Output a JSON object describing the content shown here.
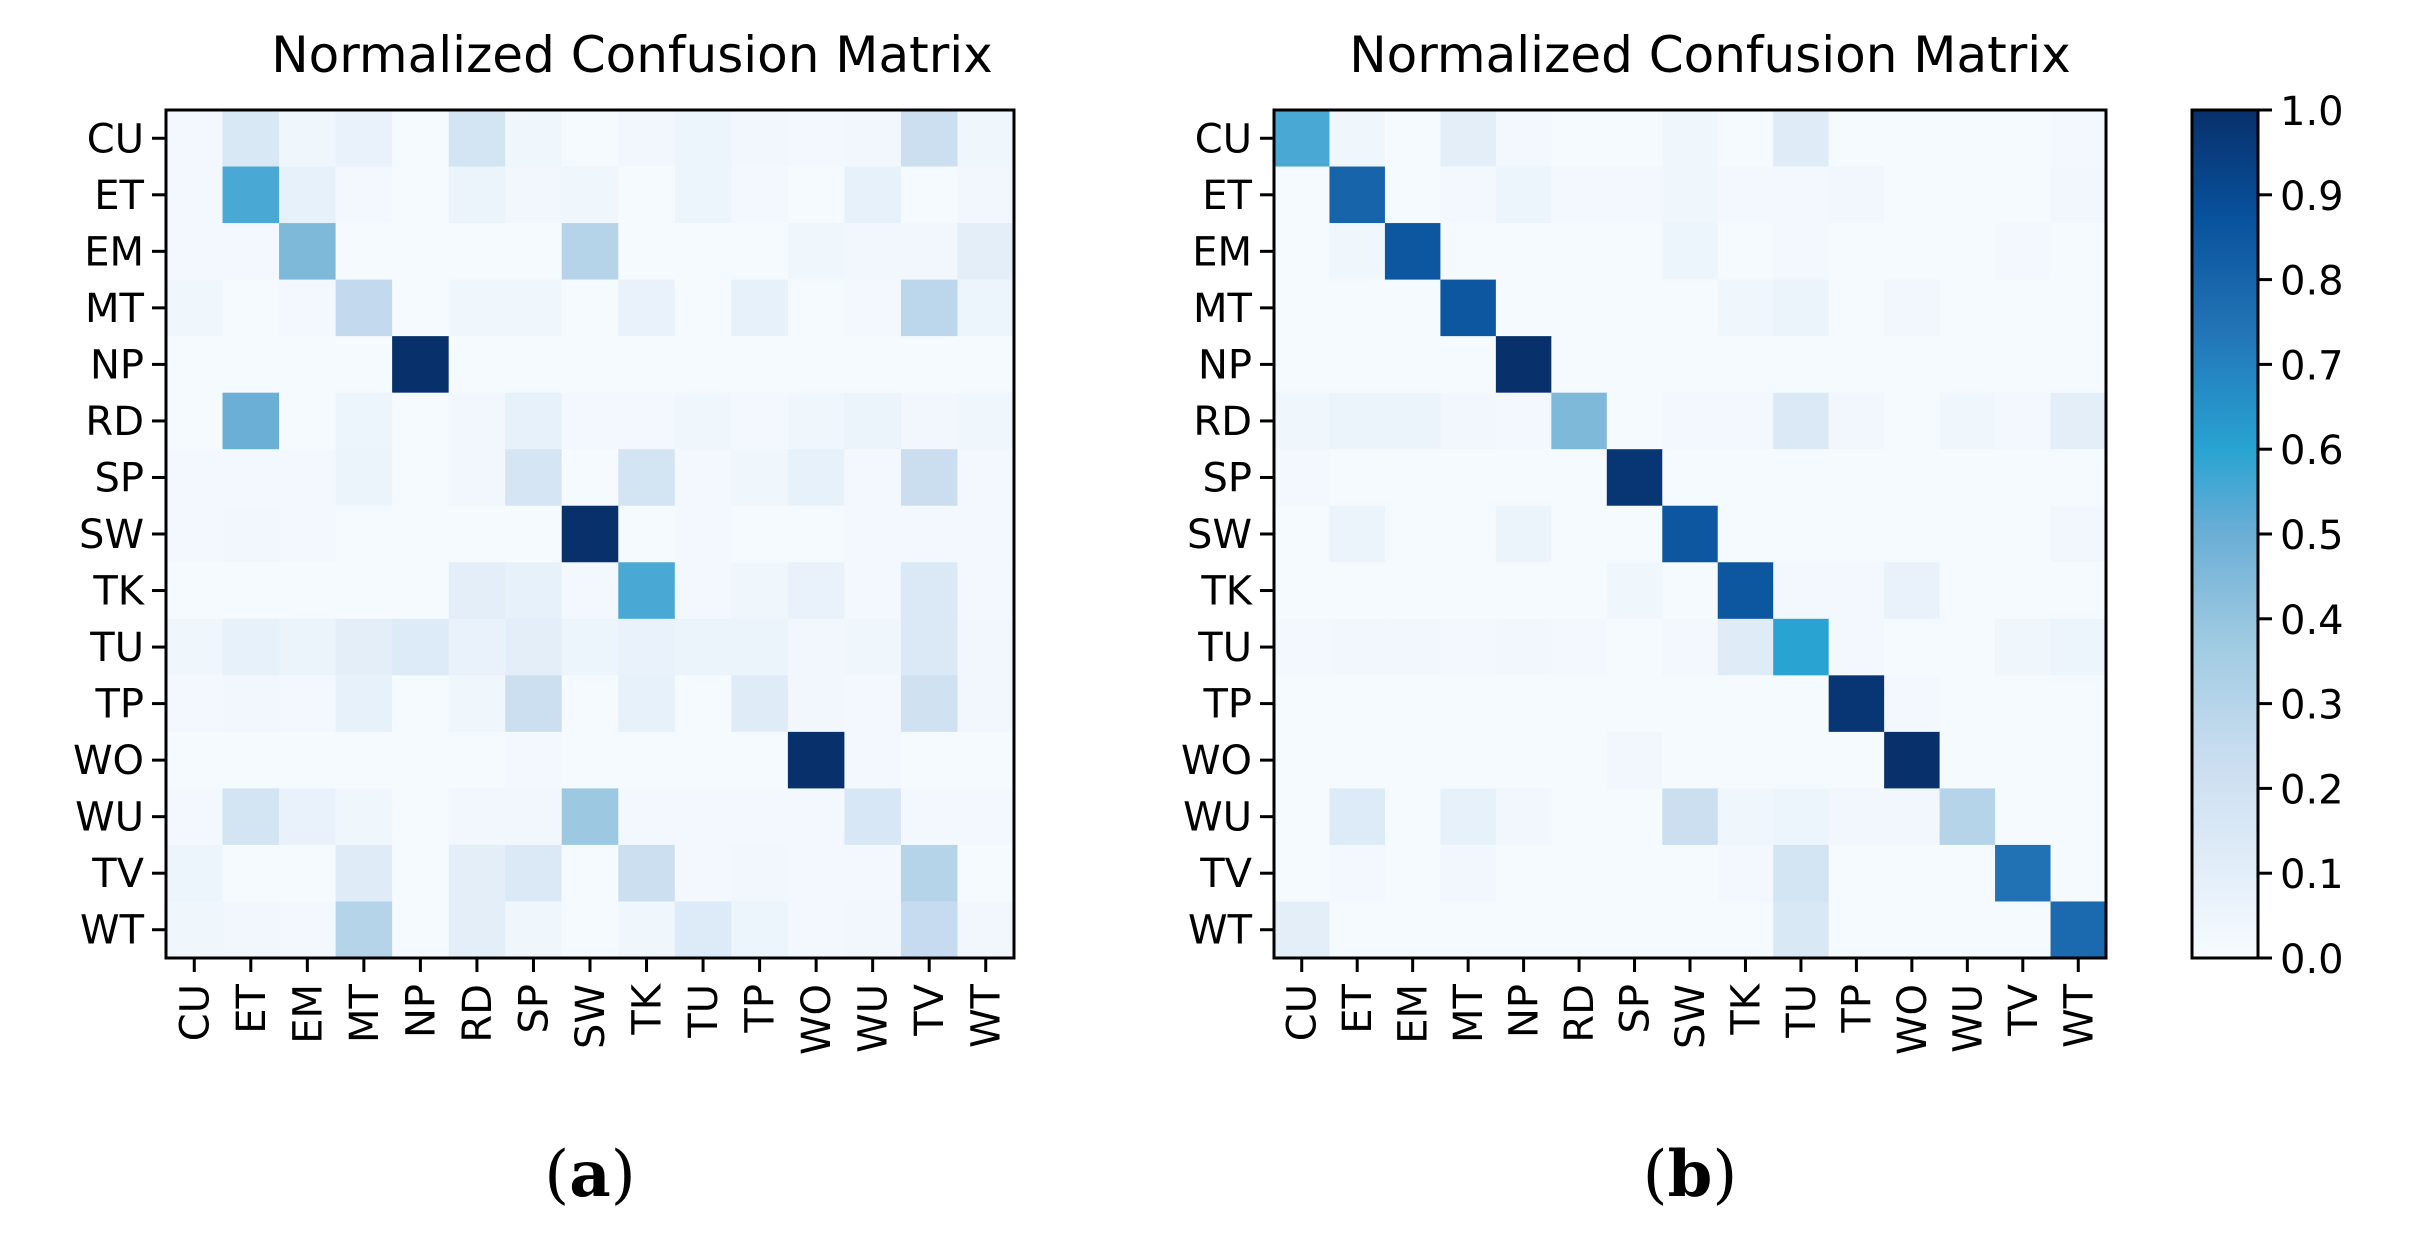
{
  "figure": {
    "panels": [
      {
        "label_open": "(",
        "label_letter": "a",
        "label_close": ")"
      },
      {
        "label_open": "(",
        "label_letter": "b",
        "label_close": ")"
      }
    ]
  },
  "chart_data": [
    {
      "type": "heatmap",
      "title": "Normalized Confusion Matrix",
      "x_categories": [
        "CU",
        "ET",
        "EM",
        "MT",
        "NP",
        "RD",
        "SP",
        "SW",
        "TK",
        "TU",
        "TP",
        "WO",
        "WU",
        "TV",
        "WT"
      ],
      "y_categories": [
        "CU",
        "ET",
        "EM",
        "MT",
        "NP",
        "RD",
        "SP",
        "SW",
        "TK",
        "TU",
        "TP",
        "WO",
        "WU",
        "TV",
        "WT"
      ],
      "value_range": [
        0,
        1
      ],
      "values": [
        [
          0.02,
          0.15,
          0.04,
          0.07,
          0.01,
          0.18,
          0.04,
          0.01,
          0.03,
          0.05,
          0.03,
          0.02,
          0.03,
          0.22,
          0.04
        ],
        [
          0.02,
          0.55,
          0.08,
          0.02,
          0.01,
          0.06,
          0.03,
          0.04,
          0.01,
          0.05,
          0.02,
          0.01,
          0.08,
          0.01,
          0.03
        ],
        [
          0.02,
          0.02,
          0.45,
          0.01,
          0.01,
          0.01,
          0.01,
          0.3,
          0.01,
          0.01,
          0.01,
          0.04,
          0.03,
          0.03,
          0.1
        ],
        [
          0.04,
          0.01,
          0.02,
          0.26,
          0.01,
          0.04,
          0.04,
          0.01,
          0.07,
          0.01,
          0.08,
          0.01,
          0.02,
          0.28,
          0.05
        ],
        [
          0.01,
          0.01,
          0.01,
          0.01,
          1.0,
          0.01,
          0.01,
          0.01,
          0.01,
          0.01,
          0.01,
          0.01,
          0.01,
          0.01,
          0.01
        ],
        [
          0.01,
          0.5,
          0.01,
          0.05,
          0.01,
          0.03,
          0.08,
          0.02,
          0.02,
          0.04,
          0.02,
          0.04,
          0.06,
          0.03,
          0.04
        ],
        [
          0.02,
          0.02,
          0.02,
          0.06,
          0.01,
          0.03,
          0.17,
          0.01,
          0.18,
          0.02,
          0.04,
          0.08,
          0.02,
          0.23,
          0.02
        ],
        [
          0.02,
          0.03,
          0.02,
          0.01,
          0.01,
          0.01,
          0.01,
          1.0,
          0.01,
          0.02,
          0.01,
          0.01,
          0.02,
          0.02,
          0.02
        ],
        [
          0.01,
          0.01,
          0.01,
          0.01,
          0.01,
          0.1,
          0.08,
          0.02,
          0.55,
          0.02,
          0.04,
          0.07,
          0.02,
          0.14,
          0.02
        ],
        [
          0.04,
          0.08,
          0.06,
          0.1,
          0.13,
          0.07,
          0.1,
          0.05,
          0.07,
          0.06,
          0.06,
          0.03,
          0.04,
          0.14,
          0.03
        ],
        [
          0.02,
          0.03,
          0.02,
          0.08,
          0.01,
          0.04,
          0.22,
          0.01,
          0.08,
          0.01,
          0.12,
          0.03,
          0.02,
          0.2,
          0.03
        ],
        [
          0.01,
          0.01,
          0.01,
          0.01,
          0.01,
          0.01,
          0.02,
          0.01,
          0.01,
          0.01,
          0.01,
          1.0,
          0.02,
          0.01,
          0.01
        ],
        [
          0.02,
          0.18,
          0.07,
          0.04,
          0.01,
          0.03,
          0.03,
          0.38,
          0.02,
          0.02,
          0.02,
          0.02,
          0.16,
          0.02,
          0.02
        ],
        [
          0.05,
          0.01,
          0.01,
          0.12,
          0.01,
          0.1,
          0.14,
          0.01,
          0.22,
          0.02,
          0.03,
          0.02,
          0.02,
          0.3,
          0.01
        ],
        [
          0.04,
          0.03,
          0.02,
          0.3,
          0.01,
          0.1,
          0.04,
          0.01,
          0.04,
          0.13,
          0.05,
          0.02,
          0.03,
          0.25,
          0.03
        ]
      ]
    },
    {
      "type": "heatmap",
      "title": "Normalized Confusion Matrix",
      "x_categories": [
        "CU",
        "ET",
        "EM",
        "MT",
        "NP",
        "RD",
        "SP",
        "SW",
        "TK",
        "TU",
        "TP",
        "WO",
        "WU",
        "TV",
        "WT"
      ],
      "y_categories": [
        "CU",
        "ET",
        "EM",
        "MT",
        "NP",
        "RD",
        "SP",
        "SW",
        "TK",
        "TU",
        "TP",
        "WO",
        "WU",
        "TV",
        "WT"
      ],
      "value_range": [
        0,
        1
      ],
      "values": [
        [
          0.55,
          0.04,
          0.01,
          0.1,
          0.02,
          0.01,
          0.01,
          0.04,
          0.01,
          0.12,
          0.01,
          0.01,
          0.01,
          0.01,
          0.02
        ],
        [
          0.01,
          0.8,
          0.01,
          0.02,
          0.05,
          0.02,
          0.02,
          0.04,
          0.02,
          0.02,
          0.03,
          0.01,
          0.01,
          0.01,
          0.03
        ],
        [
          0.01,
          0.04,
          0.85,
          0.01,
          0.01,
          0.01,
          0.01,
          0.05,
          0.01,
          0.02,
          0.01,
          0.01,
          0.01,
          0.02,
          0.01
        ],
        [
          0.01,
          0.01,
          0.01,
          0.85,
          0.01,
          0.01,
          0.01,
          0.01,
          0.04,
          0.06,
          0.01,
          0.03,
          0.01,
          0.01,
          0.01
        ],
        [
          0.01,
          0.01,
          0.01,
          0.01,
          1.0,
          0.01,
          0.01,
          0.01,
          0.01,
          0.01,
          0.01,
          0.01,
          0.01,
          0.01,
          0.01
        ],
        [
          0.04,
          0.06,
          0.06,
          0.03,
          0.02,
          0.45,
          0.01,
          0.02,
          0.02,
          0.14,
          0.03,
          0.01,
          0.04,
          0.02,
          0.1
        ],
        [
          0.02,
          0.01,
          0.01,
          0.01,
          0.01,
          0.01,
          0.98,
          0.01,
          0.01,
          0.01,
          0.01,
          0.01,
          0.01,
          0.01,
          0.01
        ],
        [
          0.01,
          0.06,
          0.01,
          0.01,
          0.06,
          0.01,
          0.01,
          0.85,
          0.01,
          0.01,
          0.01,
          0.01,
          0.01,
          0.01,
          0.03
        ],
        [
          0.01,
          0.01,
          0.01,
          0.01,
          0.01,
          0.01,
          0.04,
          0.01,
          0.85,
          0.02,
          0.02,
          0.07,
          0.01,
          0.01,
          0.01
        ],
        [
          0.02,
          0.03,
          0.03,
          0.02,
          0.03,
          0.02,
          0.01,
          0.02,
          0.12,
          0.6,
          0.02,
          0.01,
          0.01,
          0.04,
          0.05
        ],
        [
          0.01,
          0.01,
          0.01,
          0.01,
          0.01,
          0.01,
          0.01,
          0.01,
          0.01,
          0.01,
          0.98,
          0.02,
          0.01,
          0.01,
          0.01
        ],
        [
          0.01,
          0.01,
          0.01,
          0.01,
          0.01,
          0.01,
          0.03,
          0.01,
          0.01,
          0.01,
          0.01,
          1.0,
          0.01,
          0.01,
          0.01
        ],
        [
          0.01,
          0.13,
          0.01,
          0.08,
          0.03,
          0.01,
          0.01,
          0.22,
          0.04,
          0.05,
          0.03,
          0.03,
          0.3,
          0.01,
          0.01
        ],
        [
          0.01,
          0.02,
          0.01,
          0.03,
          0.01,
          0.01,
          0.01,
          0.01,
          0.02,
          0.18,
          0.01,
          0.01,
          0.01,
          0.75,
          0.01
        ],
        [
          0.1,
          0.01,
          0.01,
          0.01,
          0.01,
          0.01,
          0.01,
          0.01,
          0.01,
          0.15,
          0.01,
          0.01,
          0.01,
          0.01,
          0.78
        ]
      ]
    }
  ],
  "colorbar": {
    "range": [
      0,
      1
    ],
    "ticks": [
      "0.0",
      "0.1",
      "0.2",
      "0.3",
      "0.4",
      "0.5",
      "0.6",
      "0.7",
      "0.8",
      "0.9",
      "1.0"
    ]
  }
}
